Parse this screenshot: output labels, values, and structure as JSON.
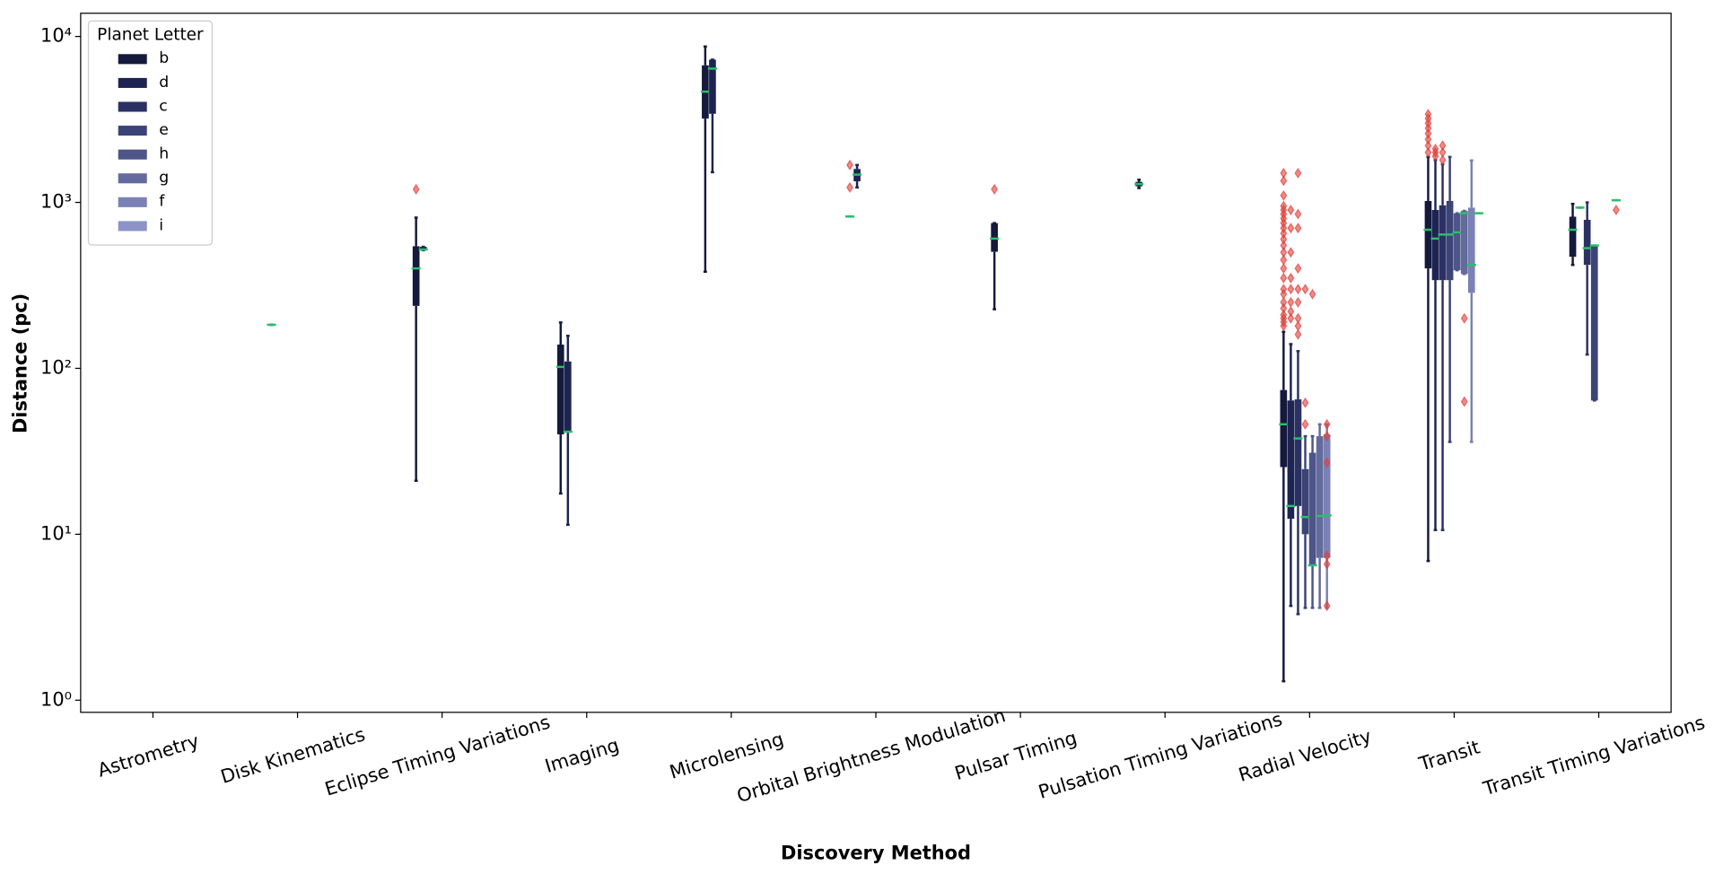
{
  "chart_data": {
    "type": "box",
    "xlabel": "Discovery Method",
    "ylabel": "Distance (pc)",
    "legend_title": "Planet Letter",
    "legend_loc": "upper left",
    "log_y": true,
    "median_color": "#2bbf6a",
    "flier_color": "#e0403a",
    "ylim": [
      0.845,
      13800
    ],
    "yticks": [
      {
        "value": 1,
        "label": "10⁰"
      },
      {
        "value": 10,
        "label": "10¹"
      },
      {
        "value": 100,
        "label": "10²"
      },
      {
        "value": 1000,
        "label": "10³"
      },
      {
        "value": 10000,
        "label": "10⁴"
      }
    ],
    "categories": [
      "Astrometry",
      "Disk Kinematics",
      "Eclipse Timing Variations",
      "Imaging",
      "Microlensing",
      "Orbital Brightness Modulation",
      "Pulsar Timing",
      "Pulsation Timing Variations",
      "Radial Velocity",
      "Transit",
      "Transit Timing Variations"
    ],
    "series": [
      {
        "name": "b",
        "color": "#14193d",
        "boxes": [
          null,
          {
            "whislo": 183,
            "q1": 183,
            "med": 183,
            "q3": 183,
            "whishi": 183
          },
          {
            "whislo": 21,
            "q1": 238,
            "med": 400,
            "q3": 544,
            "whishi": 810,
            "fliers": [
              1200
            ]
          },
          {
            "whislo": 17.6,
            "q1": 40,
            "med": 102,
            "q3": 139,
            "whishi": 189
          },
          {
            "whislo": 382,
            "q1": 3200,
            "med": 4650,
            "q3": 6700,
            "whishi": 8700
          },
          {
            "whislo": 822,
            "q1": 822,
            "med": 822,
            "q3": 822,
            "whishi": 822,
            "fliers": [
              1230,
              1680
            ]
          },
          {
            "whislo": 227,
            "q1": 504,
            "med": 605,
            "q3": 750,
            "whishi": 750,
            "fliers": [
              1200
            ]
          },
          {
            "whislo": 1220,
            "q1": 1250,
            "med": 1290,
            "q3": 1330,
            "whishi": 1370
          },
          {
            "whislo": 1.3,
            "q1": 25.4,
            "med": 46,
            "q3": 74,
            "whishi": 166,
            "fliers": [
              180,
              190,
              200,
              210,
              230,
              250,
              280,
              300,
              350,
              400,
              450,
              500,
              550,
              600,
              650,
              700,
              750,
              800,
              850,
              900,
              950,
              1100,
              1350,
              1500
            ]
          },
          {
            "whislo": 6.9,
            "q1": 400,
            "med": 684,
            "q3": 1020,
            "whishi": 1880,
            "fliers": [
              2000,
              2200,
              2400,
              2600,
              2800,
              3000,
              3200,
              3400
            ]
          },
          {
            "whislo": 420,
            "q1": 470,
            "med": 684,
            "q3": 820,
            "whishi": 980
          }
        ]
      },
      {
        "name": "d",
        "color": "#1e2452",
        "boxes": [
          null,
          null,
          {
            "whislo": 515,
            "q1": 515,
            "med": 520,
            "q3": 540,
            "whishi": 540
          },
          {
            "whislo": 11.4,
            "q1": 41,
            "med": 41.5,
            "q3": 110,
            "whishi": 157
          },
          {
            "whislo": 1520,
            "q1": 3420,
            "med": 6400,
            "q3": 7250,
            "whishi": 7250
          },
          {
            "whislo": 1230,
            "q1": 1340,
            "med": 1470,
            "q3": 1590,
            "whishi": 1680
          },
          null,
          null,
          {
            "whislo": 3.7,
            "q1": 12.4,
            "med": 14.8,
            "q3": 64,
            "whishi": 140,
            "fliers": [
              200,
              220,
              250,
              300,
              350,
              500,
              700,
              900
            ]
          },
          {
            "whislo": 10.6,
            "q1": 340,
            "med": 605,
            "q3": 900,
            "whishi": 1800,
            "fliers": [
              1900,
              2000,
              2100
            ]
          },
          {
            "whislo": 930,
            "q1": 930,
            "med": 930,
            "q3": 930,
            "whishi": 930
          }
        ]
      },
      {
        "name": "c",
        "color": "#2b3163",
        "boxes": [
          null,
          null,
          null,
          null,
          null,
          null,
          null,
          null,
          {
            "whislo": 3.3,
            "q1": 14.8,
            "med": 37.8,
            "q3": 65,
            "whishi": 127,
            "fliers": [
              160,
              180,
              200,
              250,
              300,
              400,
              700,
              850,
              1500
            ]
          },
          {
            "whislo": 10.6,
            "q1": 340,
            "med": 640,
            "q3": 960,
            "whishi": 1700,
            "fliers": [
              1800,
              2000,
              2200
            ]
          },
          {
            "whislo": 121,
            "q1": 420,
            "med": 530,
            "q3": 785,
            "whishi": 1000
          }
        ]
      },
      {
        "name": "e",
        "color": "#3c4377",
        "boxes": [
          null,
          null,
          null,
          null,
          null,
          null,
          null,
          null,
          {
            "whislo": 3.6,
            "q1": 10,
            "med": 12.7,
            "q3": 24.7,
            "whishi": 39,
            "fliers": [
              46,
              62,
              300
            ]
          },
          {
            "whislo": 36,
            "q1": 340,
            "med": 640,
            "q3": 1020,
            "whishi": 1880
          },
          {
            "whislo": 64,
            "q1": 64,
            "med": 550,
            "q3": 550,
            "whishi": 550
          }
        ]
      },
      {
        "name": "h",
        "color": "#4e5589",
        "boxes": [
          null,
          null,
          null,
          null,
          null,
          null,
          null,
          null,
          {
            "whislo": 3.6,
            "q1": 6.5,
            "med": 6.5,
            "q3": 31,
            "whishi": 39,
            "fliers": [
              280
            ]
          },
          {
            "whislo": 390,
            "q1": 390,
            "med": 660,
            "q3": 860,
            "whishi": 860
          },
          null
        ]
      },
      {
        "name": "g",
        "color": "#636a9c",
        "boxes": [
          null,
          null,
          null,
          null,
          null,
          null,
          null,
          null,
          {
            "whislo": 3.6,
            "q1": 7.2,
            "med": 12.9,
            "q3": 39,
            "whishi": 46
          },
          {
            "whislo": 370,
            "q1": 370,
            "med": 860,
            "q3": 890,
            "whishi": 890,
            "fliers": [
              63,
              200
            ]
          },
          null
        ]
      },
      {
        "name": "f",
        "color": "#7a81b4",
        "boxes": [
          null,
          null,
          null,
          null,
          null,
          null,
          null,
          null,
          {
            "whislo": 3.6,
            "q1": 7.2,
            "med": 13,
            "q3": 40,
            "whishi": 46,
            "fliers": [
              3.7,
              6.6,
              7.4,
              27,
              39,
              46
            ]
          },
          {
            "whislo": 36,
            "q1": 285,
            "med": 420,
            "q3": 930,
            "whishi": 1790
          },
          {
            "whislo": 1030,
            "q1": 1030,
            "med": 1030,
            "q3": 1030,
            "whishi": 1030,
            "fliers": [
              900
            ]
          }
        ]
      },
      {
        "name": "i",
        "color": "#8b93c9",
        "boxes": [
          null,
          null,
          null,
          null,
          null,
          null,
          null,
          null,
          null,
          {
            "whislo": 860,
            "q1": 860,
            "med": 860,
            "q3": 860,
            "whishi": 860
          },
          null
        ]
      }
    ]
  }
}
